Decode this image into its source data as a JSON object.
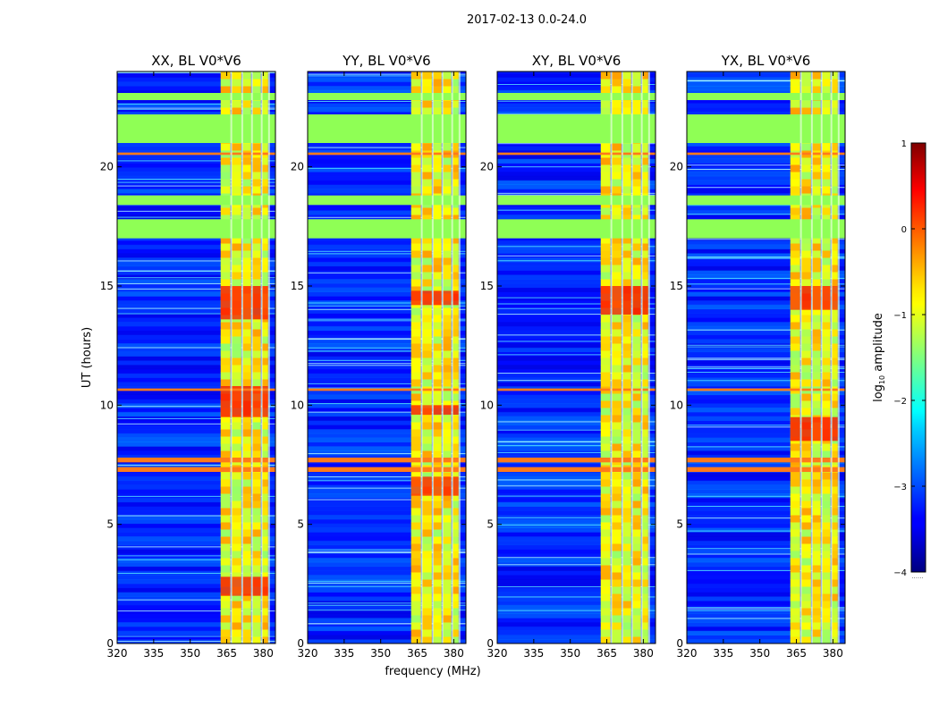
{
  "chart_data": {
    "type": "heatmap",
    "suptitle": "2017-02-13 0.0-24.0",
    "xlabel": "frequency (MHz)",
    "ylabel": "UT (hours)",
    "xlim": [
      320,
      385
    ],
    "ylim": [
      0,
      24
    ],
    "xticks": [
      320,
      335,
      350,
      365,
      380
    ],
    "yticks": [
      0,
      5,
      10,
      15,
      20
    ],
    "colorbar": {
      "label_prefix": "log",
      "label_sub": "10",
      "label_suffix": " amplitude",
      "range": [
        -4,
        1
      ],
      "ticks": [
        1,
        0,
        -1,
        -2,
        -3,
        -4
      ],
      "tick_labels": [
        "1",
        "0",
        "−1",
        "−2",
        "−3",
        "−4"
      ],
      "colormap": "jet",
      "under_text": "......"
    },
    "panels": [
      {
        "title": "XX, BL V0*V6",
        "hotspots_hours": [
          [
            2.0,
            2.8
          ],
          [
            9.5,
            10.8
          ],
          [
            13.6,
            15.0
          ]
        ]
      },
      {
        "title": "YY, BL V0*V6",
        "hotspots_hours": [
          [
            14.2,
            14.8
          ],
          [
            9.6,
            10.0
          ],
          [
            6.2,
            7.0
          ]
        ]
      },
      {
        "title": "XY, BL V0*V6",
        "hotspots_hours": [
          [
            13.8,
            15.0
          ]
        ]
      },
      {
        "title": "YX, BL V0*V6",
        "hotspots_hours": [
          [
            14.0,
            15.0
          ],
          [
            8.5,
            9.5
          ]
        ]
      }
    ],
    "flagged_time_bands_hours": [
      [
        21.0,
        22.2
      ],
      [
        20.5,
        20.6
      ],
      [
        18.4,
        18.8
      ],
      [
        17.0,
        17.8
      ],
      [
        22.8,
        23.1
      ],
      [
        7.6,
        7.8
      ],
      [
        7.2,
        7.4
      ],
      [
        10.6,
        10.7
      ]
    ],
    "bright_channel_range_mhz": [
      362,
      382
    ],
    "notes": "Waterfall of log10 amplitude vs frequency and UT for four polarizations"
  }
}
